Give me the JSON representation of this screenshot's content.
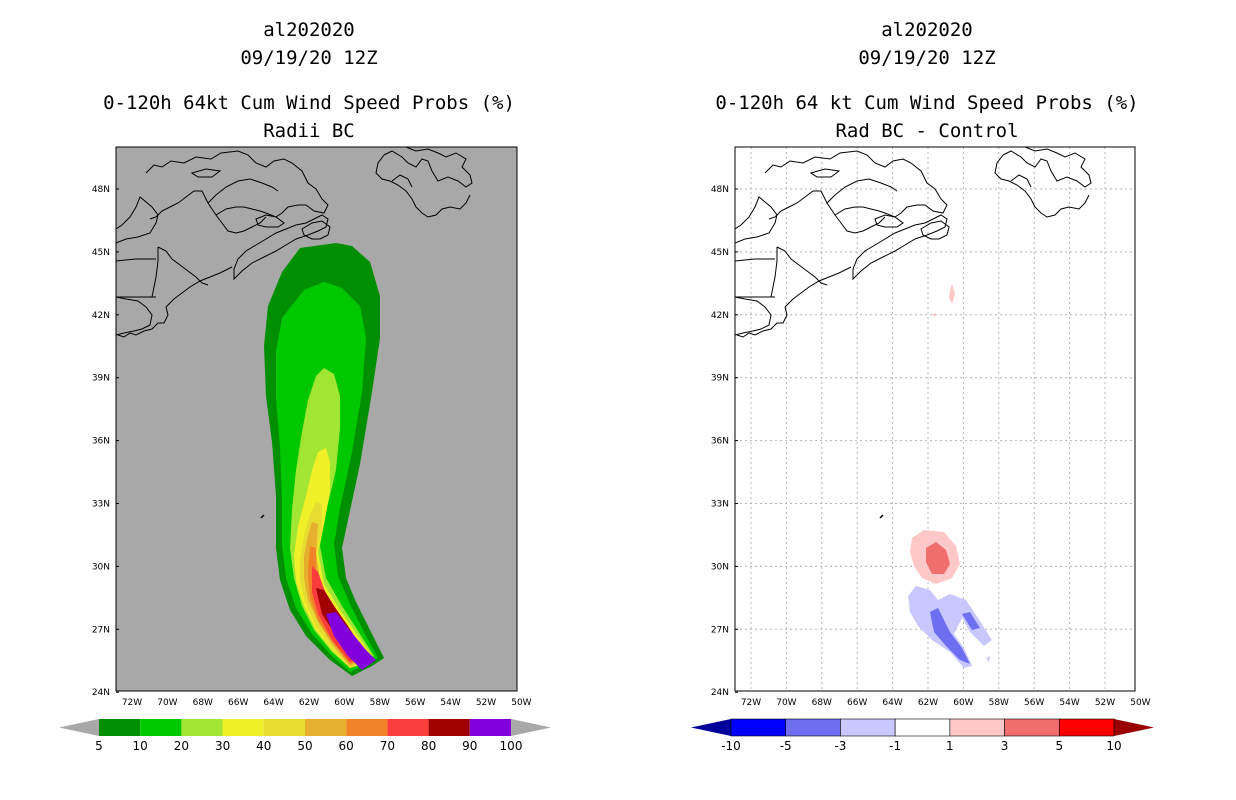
{
  "left": {
    "title1": "al202020",
    "title2": "09/19/20 12Z",
    "title3": "0-120h 64kt Cum Wind Speed Probs (%)",
    "title4": "Radii BC",
    "background": "#a8a8a8",
    "colorbar": {
      "labels": [
        "5",
        "10",
        "20",
        "30",
        "40",
        "50",
        "60",
        "70",
        "80",
        "90",
        "100"
      ],
      "colors": [
        "#008f00",
        "#00c800",
        "#a0e632",
        "#f0f028",
        "#e6dc32",
        "#e6af2d",
        "#f08228",
        "#fa3c3c",
        "#a00000",
        "#8200dc"
      ],
      "left_arrow": "#a8a8a8",
      "right_arrow": "#a8a8a8"
    }
  },
  "right": {
    "title1": "al202020",
    "title2": "09/19/20 12Z",
    "title3": "0-120h 64 kt Cum Wind Speed Probs (%)",
    "title4": "Rad BC - Control",
    "background": "#ffffff",
    "colorbar": {
      "labels": [
        "-10",
        "-5",
        "-3",
        "-1",
        "1",
        "3",
        "5",
        "10"
      ],
      "colors": [
        "#0000ff",
        "#6e6ef0",
        "#c8c8ff",
        "#ffffff",
        "#ffc8c8",
        "#f06e6e",
        "#ff0000"
      ],
      "left_arrow": "#00009b",
      "right_arrow": "#9b0000"
    }
  },
  "axes": {
    "lat_labels": [
      "48N",
      "45N",
      "42N",
      "39N",
      "36N",
      "33N",
      "30N",
      "27N",
      "24N"
    ],
    "lon_labels": [
      "72W",
      "70W",
      "68W",
      "66W",
      "64W",
      "62W",
      "60W",
      "58W",
      "56W",
      "54W",
      "52W",
      "50W"
    ]
  }
}
